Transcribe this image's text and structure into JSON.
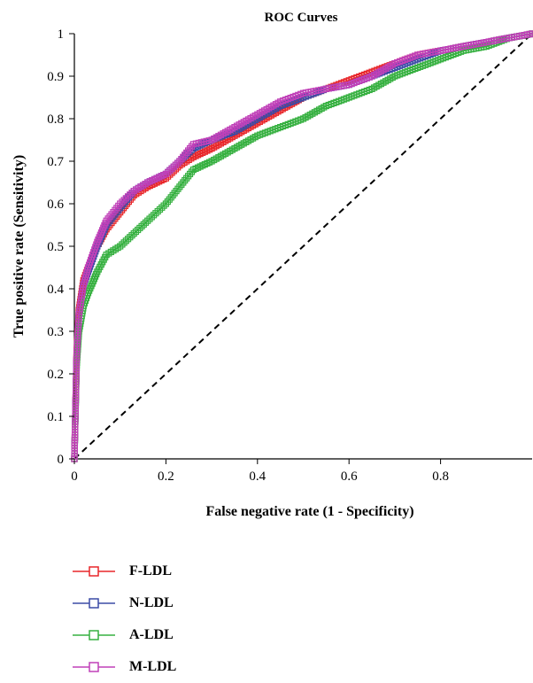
{
  "chart_data": {
    "type": "line",
    "title": "ROC Curves",
    "xlabel": "False negative rate (1 - Specificity)",
    "ylabel": "True positive rate (Sensitivity)",
    "xlim": [
      0,
      1
    ],
    "ylim": [
      0,
      1
    ],
    "xticks": [
      "0",
      "0.2",
      "0.4",
      "0.6",
      "0.8"
    ],
    "yticks": [
      "0",
      "0.1",
      "0.2",
      "0.3",
      "0.4",
      "0.5",
      "0.6",
      "0.7",
      "0.8",
      "0.9",
      "1"
    ],
    "grid": false,
    "legend_position": "bottom",
    "marker": "square-open",
    "series": [
      {
        "name": "F-LDL",
        "color": "#e8262a",
        "x": [
          0,
          0.005,
          0.01,
          0.02,
          0.03,
          0.05,
          0.07,
          0.1,
          0.13,
          0.16,
          0.2,
          0.23,
          0.26,
          0.3,
          0.35,
          0.4,
          0.45,
          0.5,
          0.55,
          0.6,
          0.65,
          0.7,
          0.75,
          0.8,
          0.85,
          0.9,
          0.95,
          1.0
        ],
        "y": [
          0,
          0.25,
          0.35,
          0.42,
          0.45,
          0.5,
          0.54,
          0.58,
          0.62,
          0.64,
          0.66,
          0.69,
          0.71,
          0.73,
          0.76,
          0.79,
          0.82,
          0.85,
          0.87,
          0.89,
          0.91,
          0.93,
          0.95,
          0.96,
          0.97,
          0.98,
          0.99,
          1.0
        ]
      },
      {
        "name": "N-LDL",
        "color": "#3b4ba6",
        "x": [
          0,
          0.005,
          0.01,
          0.02,
          0.03,
          0.05,
          0.07,
          0.1,
          0.13,
          0.16,
          0.2,
          0.23,
          0.26,
          0.3,
          0.35,
          0.4,
          0.45,
          0.5,
          0.55,
          0.6,
          0.65,
          0.7,
          0.75,
          0.8,
          0.85,
          0.9,
          0.95,
          1.0
        ],
        "y": [
          0,
          0.24,
          0.34,
          0.41,
          0.44,
          0.5,
          0.55,
          0.59,
          0.63,
          0.65,
          0.67,
          0.7,
          0.73,
          0.75,
          0.77,
          0.8,
          0.83,
          0.85,
          0.87,
          0.88,
          0.9,
          0.92,
          0.94,
          0.96,
          0.97,
          0.98,
          0.99,
          1.0
        ]
      },
      {
        "name": "A-LDL",
        "color": "#36b040",
        "x": [
          0,
          0.005,
          0.01,
          0.02,
          0.03,
          0.05,
          0.07,
          0.1,
          0.13,
          0.16,
          0.2,
          0.23,
          0.26,
          0.3,
          0.35,
          0.4,
          0.45,
          0.5,
          0.55,
          0.6,
          0.65,
          0.7,
          0.75,
          0.8,
          0.85,
          0.9,
          0.95,
          1.0
        ],
        "y": [
          0,
          0.22,
          0.3,
          0.36,
          0.39,
          0.44,
          0.48,
          0.5,
          0.53,
          0.56,
          0.6,
          0.64,
          0.68,
          0.7,
          0.73,
          0.76,
          0.78,
          0.8,
          0.83,
          0.85,
          0.87,
          0.9,
          0.92,
          0.94,
          0.96,
          0.97,
          0.99,
          1.0
        ]
      },
      {
        "name": "M-LDL",
        "color": "#c040b8",
        "x": [
          0,
          0.005,
          0.01,
          0.02,
          0.03,
          0.05,
          0.07,
          0.1,
          0.13,
          0.16,
          0.2,
          0.23,
          0.26,
          0.3,
          0.35,
          0.4,
          0.45,
          0.5,
          0.55,
          0.6,
          0.65,
          0.7,
          0.75,
          0.8,
          0.85,
          0.9,
          0.95,
          1.0
        ],
        "y": [
          0,
          0.24,
          0.34,
          0.41,
          0.45,
          0.51,
          0.56,
          0.6,
          0.63,
          0.65,
          0.67,
          0.7,
          0.74,
          0.75,
          0.78,
          0.81,
          0.84,
          0.86,
          0.87,
          0.88,
          0.9,
          0.93,
          0.95,
          0.96,
          0.97,
          0.98,
          0.99,
          1.0
        ]
      }
    ],
    "reference_line": {
      "x": [
        0,
        1
      ],
      "y": [
        0,
        1
      ],
      "style": "dashed",
      "color": "#000000"
    }
  }
}
